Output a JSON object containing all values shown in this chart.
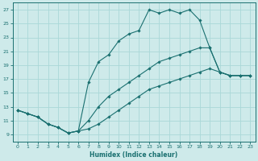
{
  "xlabel": "Humidex (Indice chaleur)",
  "bg_color": "#ceeaea",
  "grid_color": "#aad8d8",
  "line_color": "#1a7070",
  "xlim": [
    -0.5,
    23.5
  ],
  "ylim": [
    8,
    28
  ],
  "xticks": [
    0,
    1,
    2,
    3,
    4,
    5,
    6,
    7,
    8,
    9,
    10,
    11,
    12,
    13,
    14,
    15,
    16,
    17,
    18,
    19,
    20,
    21,
    22,
    23
  ],
  "yticks": [
    9,
    11,
    13,
    15,
    17,
    19,
    21,
    23,
    25,
    27
  ],
  "series": [
    {
      "x": [
        0,
        1,
        2,
        3,
        4,
        5,
        6,
        7,
        8,
        9,
        10,
        11,
        12,
        13,
        14,
        15,
        16,
        17,
        18,
        19,
        20,
        21,
        22,
        23
      ],
      "y": [
        12.5,
        12.0,
        11.5,
        10.5,
        10.0,
        9.2,
        9.5,
        16.5,
        19.5,
        20.5,
        22.5,
        23.5,
        24.0,
        27.0,
        26.5,
        27.0,
        26.5,
        27.0,
        25.5,
        21.5,
        18.0,
        17.5,
        17.5,
        17.5
      ]
    },
    {
      "x": [
        0,
        1,
        2,
        3,
        4,
        5,
        6,
        7,
        8,
        9,
        10,
        11,
        12,
        13,
        14,
        15,
        16,
        17,
        18,
        19,
        20,
        21,
        22,
        23
      ],
      "y": [
        12.5,
        12.0,
        11.5,
        10.5,
        10.0,
        9.2,
        9.5,
        11.0,
        13.0,
        14.5,
        15.5,
        16.5,
        17.5,
        18.5,
        19.5,
        20.0,
        20.5,
        21.0,
        21.5,
        21.5,
        18.0,
        17.5,
        17.5,
        17.5
      ]
    },
    {
      "x": [
        0,
        1,
        2,
        3,
        4,
        5,
        6,
        7,
        8,
        9,
        10,
        11,
        12,
        13,
        14,
        15,
        16,
        17,
        18,
        19,
        20,
        21,
        22,
        23
      ],
      "y": [
        12.5,
        12.0,
        11.5,
        10.5,
        10.0,
        9.2,
        9.5,
        9.8,
        10.5,
        11.5,
        12.5,
        13.5,
        14.5,
        15.5,
        16.0,
        16.5,
        17.0,
        17.5,
        18.0,
        18.5,
        18.0,
        17.5,
        17.5,
        17.5
      ]
    }
  ]
}
